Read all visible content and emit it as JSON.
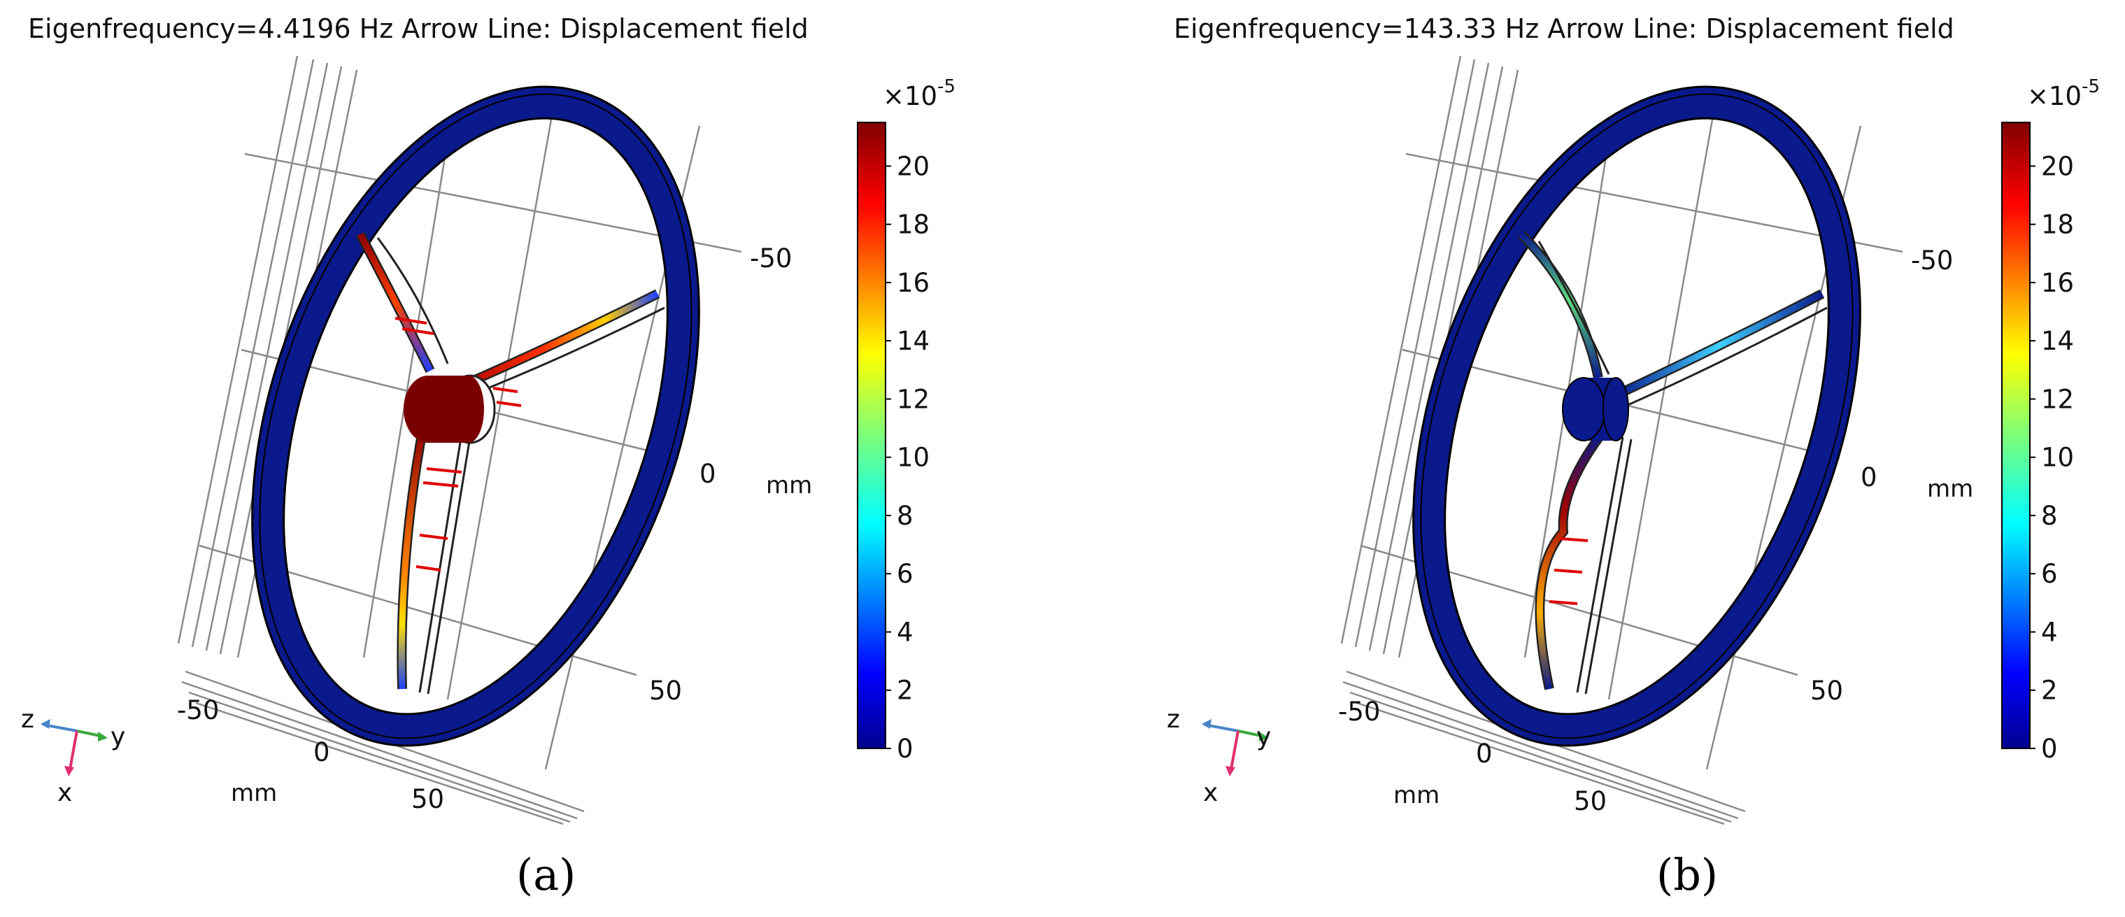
{
  "figure": {
    "panels": [
      {
        "id": "a",
        "title": "Eigenfrequency=4.4196 Hz   Arrow Line: Displacement field",
        "caption": "(a)",
        "hub_color": "#7a0000",
        "colorbar": {
          "exponent_label": "×10",
          "exponent": "-5",
          "ticks": [
            "20",
            "18",
            "16",
            "14",
            "12",
            "10",
            "8",
            "6",
            "4",
            "2",
            "0"
          ]
        },
        "axis_ticks": {
          "depth": [
            "-50",
            "0",
            "50"
          ],
          "depth_unit": "mm",
          "bottom": [
            "-50",
            "0",
            "50"
          ],
          "bottom_unit": "mm"
        },
        "triad": {
          "z": "z",
          "y": "y",
          "x": "x"
        }
      },
      {
        "id": "b",
        "title": "Eigenfrequency=143.33 Hz   Arrow Line: Displacement field",
        "caption": "(b)",
        "hub_color": "#0a1a8c",
        "colorbar": {
          "exponent_label": "×10",
          "exponent": "-5",
          "ticks": [
            "20",
            "18",
            "16",
            "14",
            "12",
            "10",
            "8",
            "6",
            "4",
            "2",
            "0"
          ]
        },
        "axis_ticks": {
          "depth": [
            "-50",
            "0",
            "50"
          ],
          "depth_unit": "mm",
          "bottom": [
            "-50",
            "0",
            "50"
          ],
          "bottom_unit": "mm"
        },
        "triad": {
          "z": "z",
          "y": "y",
          "x": "x"
        }
      }
    ],
    "colors": {
      "rim": "#0a1a8c",
      "colormap": "jet",
      "arrow": "#e00000"
    }
  }
}
